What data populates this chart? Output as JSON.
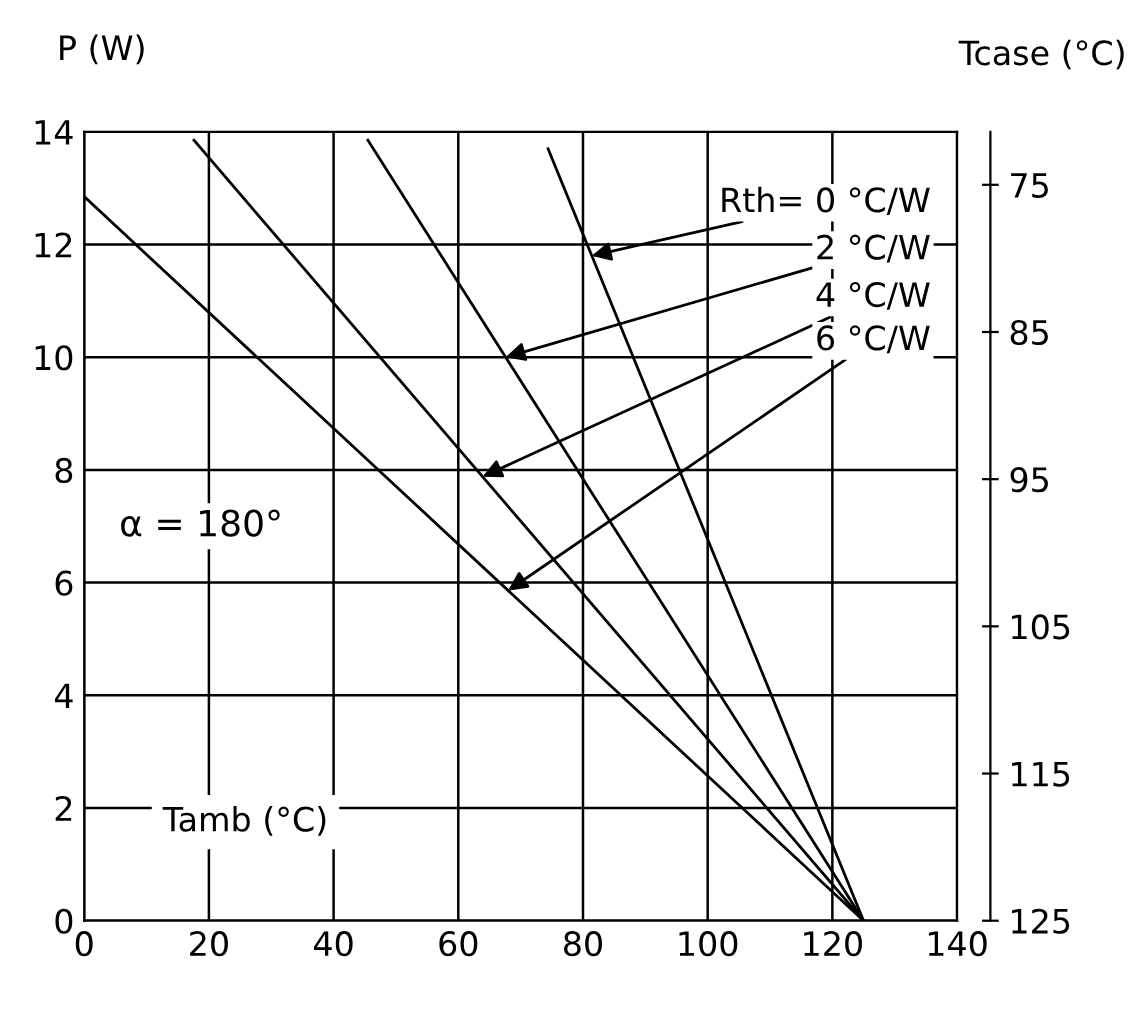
{
  "chart_data": {
    "type": "line",
    "xlabel": "Tamb (°C)",
    "ylabel": "P (W)",
    "y2label": "Tcase (°C)",
    "series": [
      {
        "color": "#000000",
        "x": [
          74.4,
          125
        ],
        "values": [
          13.7,
          0
        ]
      },
      {
        "color": "#000000",
        "x": [
          45.5,
          125
        ],
        "values": [
          13.85,
          0
        ]
      },
      {
        "color": "#000000",
        "x": [
          17.6,
          125
        ],
        "values": [
          13.85,
          0
        ]
      },
      {
        "color": "#000000",
        "x": [
          0,
          125
        ],
        "values": [
          12.85,
          0
        ]
      }
    ],
    "xlim": [
      0,
      140
    ],
    "xticks": [
      0,
      20,
      40,
      60,
      80,
      100,
      120,
      140
    ],
    "ylim": [
      0,
      14
    ],
    "yticks": [
      0,
      2,
      4,
      6,
      8,
      10,
      12,
      14
    ],
    "y2lim": [
      125,
      71.4
    ],
    "y2ticks": [
      75,
      85,
      95,
      105,
      115,
      125
    ],
    "grid": true,
    "line_style": "solid",
    "marker": "none",
    "annotations": [
      {
        "text": "Rth= 0 °C/W",
        "x": 81.4,
        "y": 11.8
      },
      {
        "text": "2 °C/W",
        "x": 67.6,
        "y": 10
      },
      {
        "text": "4 °C/W",
        "x": 63.9,
        "y": 7.88
      },
      {
        "text": "6 °C/W",
        "x": 68,
        "y": 5.86
      },
      "α = 180°"
    ]
  }
}
